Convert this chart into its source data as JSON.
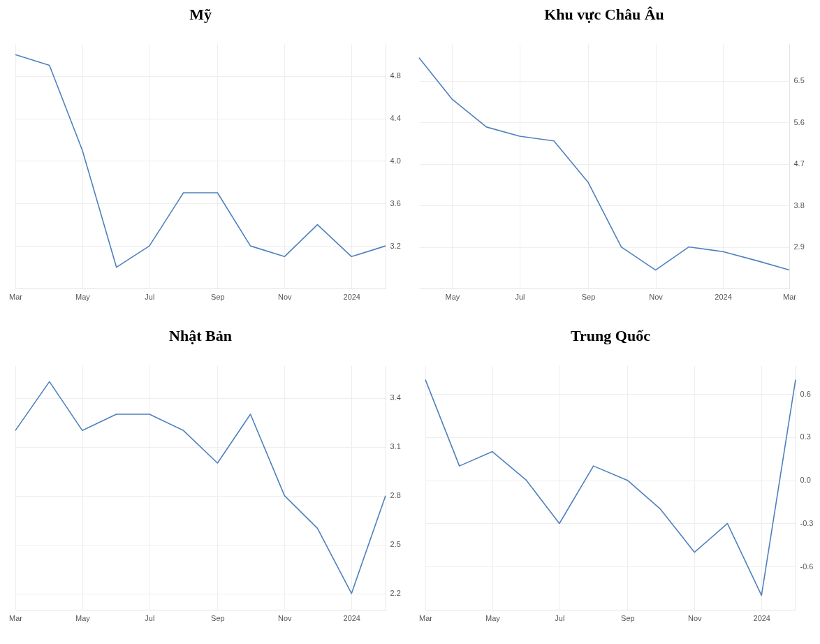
{
  "chart_data": [
    {
      "type": "line",
      "title": "Mỹ",
      "x": [
        "2023-03",
        "2023-04",
        "2023-05",
        "2023-06",
        "2023-07",
        "2023-08",
        "2023-09",
        "2023-10",
        "2023-11",
        "2023-12",
        "2024-01",
        "2024-02"
      ],
      "series": [
        {
          "color": "#4f81bd",
          "values": [
            5.0,
            4.9,
            4.1,
            3.0,
            3.2,
            3.7,
            3.7,
            3.2,
            3.1,
            3.4,
            3.1,
            3.2
          ]
        }
      ],
      "xlim": [
        "2023-03",
        "2024-02"
      ],
      "xticks": [
        {
          "value": "2023-03",
          "label": "Mar"
        },
        {
          "value": "2023-05",
          "label": "May"
        },
        {
          "value": "2023-07",
          "label": "Jul"
        },
        {
          "value": "2023-09",
          "label": "Sep"
        },
        {
          "value": "2023-11",
          "label": "Nov"
        },
        {
          "value": "2024-01",
          "label": "2024"
        }
      ],
      "ylim": [
        2.8,
        5.1
      ],
      "yticks": [
        3.2,
        3.6,
        {
          "value": 4,
          "label": "4.0"
        },
        4.4,
        4.8
      ],
      "grid": true,
      "line_style": "solid"
    },
    {
      "type": "line",
      "title": "Khu vực Châu Âu",
      "x": [
        "2023-04",
        "2023-05",
        "2023-06",
        "2023-07",
        "2023-08",
        "2023-09",
        "2023-10",
        "2023-11",
        "2023-12",
        "2024-01",
        "2024-02",
        "2024-03"
      ],
      "series": [
        {
          "color": "#4f81bd",
          "values": [
            7.0,
            6.1,
            5.5,
            5.3,
            5.2,
            4.3,
            2.9,
            2.4,
            2.9,
            2.8,
            2.6,
            2.4
          ]
        }
      ],
      "xlim": [
        "2023-04",
        "2024-03"
      ],
      "xticks": [
        {
          "value": "2023-05",
          "label": "May"
        },
        {
          "value": "2023-07",
          "label": "Jul"
        },
        {
          "value": "2023-09",
          "label": "Sep"
        },
        {
          "value": "2023-11",
          "label": "Nov"
        },
        {
          "value": "2024-01",
          "label": "2024"
        },
        {
          "value": "2024-03",
          "label": "Mar"
        }
      ],
      "ylim": [
        2.0,
        7.3
      ],
      "yticks": [
        2.9,
        3.8,
        4.7,
        5.6,
        6.5
      ],
      "grid": true,
      "line_style": "solid"
    },
    {
      "type": "line",
      "title": "Nhật Bản",
      "x": [
        "2023-03",
        "2023-04",
        "2023-05",
        "2023-06",
        "2023-07",
        "2023-08",
        "2023-09",
        "2023-10",
        "2023-11",
        "2023-12",
        "2024-01",
        "2024-02"
      ],
      "series": [
        {
          "color": "#4f81bd",
          "values": [
            3.2,
            3.5,
            3.2,
            3.3,
            3.3,
            3.2,
            3.0,
            3.3,
            2.8,
            2.6,
            2.2,
            2.8
          ]
        }
      ],
      "xlim": [
        "2023-03",
        "2024-02"
      ],
      "xticks": [
        {
          "value": "2023-03",
          "label": "Mar"
        },
        {
          "value": "2023-05",
          "label": "May"
        },
        {
          "value": "2023-07",
          "label": "Jul"
        },
        {
          "value": "2023-09",
          "label": "Sep"
        },
        {
          "value": "2023-11",
          "label": "Nov"
        },
        {
          "value": "2024-01",
          "label": "2024"
        }
      ],
      "ylim": [
        2.1,
        3.6
      ],
      "yticks": [
        2.2,
        2.5,
        2.8,
        3.1,
        3.4
      ],
      "grid": true,
      "line_style": "solid"
    },
    {
      "type": "line",
      "title": "Trung Quốc",
      "x": [
        "2023-03",
        "2023-04",
        "2023-05",
        "2023-06",
        "2023-07",
        "2023-08",
        "2023-09",
        "2023-10",
        "2023-11",
        "2023-12",
        "2024-01",
        "2024-02"
      ],
      "series": [
        {
          "color": "#4f81bd",
          "values": [
            0.7,
            0.1,
            0.2,
            0.0,
            -0.3,
            0.1,
            0.0,
            -0.2,
            -0.5,
            -0.3,
            -0.8,
            0.7
          ]
        }
      ],
      "xlim": [
        "2023-03",
        "2024-02"
      ],
      "xticks": [
        {
          "value": "2023-03",
          "label": "Mar"
        },
        {
          "value": "2023-05",
          "label": "May"
        },
        {
          "value": "2023-07",
          "label": "Jul"
        },
        {
          "value": "2023-09",
          "label": "Sep"
        },
        {
          "value": "2023-11",
          "label": "Nov"
        },
        {
          "value": "2024-01",
          "label": "2024"
        }
      ],
      "ylim": [
        -0.9,
        0.8
      ],
      "yticks": [
        {
          "value": -0.6,
          "label": "-0.6"
        },
        {
          "value": -0.3,
          "label": "-0.3"
        },
        {
          "value": 0,
          "label": "0.0"
        },
        {
          "value": 0.3,
          "label": "0.3"
        },
        {
          "value": 0.6,
          "label": "0.6"
        }
      ],
      "grid": true,
      "line_style": "solid"
    }
  ]
}
